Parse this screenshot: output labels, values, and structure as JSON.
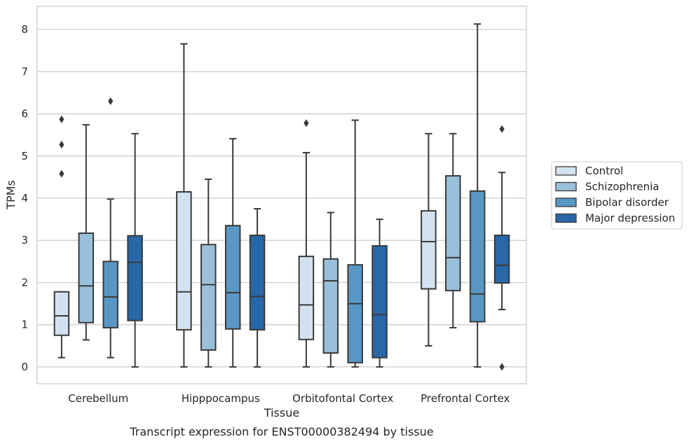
{
  "chart_data": {
    "type": "box",
    "title": "",
    "caption": "Transcript expression for ENST00000382494 by tissue",
    "xlabel": "Tissue",
    "ylabel": "TPMs",
    "ylim": [
      -0.4,
      8.55
    ],
    "yticks": [
      0,
      1,
      2,
      3,
      4,
      5,
      6,
      7,
      8
    ],
    "grid": "horizontal",
    "legend_position": "right",
    "categories": [
      "Cerebellum",
      "Hipppocampus",
      "Orbitofontal Cortex",
      "Prefrontal Cortex"
    ],
    "series": [
      {
        "name": "Control",
        "color": "#d3e2f0",
        "boxes": [
          {
            "whisker_low": 0.22,
            "q1": 0.75,
            "median": 1.21,
            "q3": 1.78,
            "whisker_high": 1.78,
            "outliers": [
              4.58,
              5.27,
              5.87
            ]
          },
          {
            "whisker_low": 0.0,
            "q1": 0.88,
            "median": 1.78,
            "q3": 4.15,
            "whisker_high": 7.66,
            "outliers": []
          },
          {
            "whisker_low": 0.0,
            "q1": 0.65,
            "median": 1.47,
            "q3": 2.62,
            "whisker_high": 5.08,
            "outliers": [
              5.78
            ]
          },
          {
            "whisker_low": 0.5,
            "q1": 1.85,
            "median": 2.97,
            "q3": 3.7,
            "whisker_high": 5.53,
            "outliers": []
          }
        ]
      },
      {
        "name": "Schizophrenia",
        "color": "#99c0db",
        "boxes": [
          {
            "whisker_low": 0.64,
            "q1": 1.05,
            "median": 1.92,
            "q3": 3.17,
            "whisker_high": 5.74,
            "outliers": []
          },
          {
            "whisker_low": 0.0,
            "q1": 0.4,
            "median": 1.95,
            "q3": 2.9,
            "whisker_high": 4.45,
            "outliers": []
          },
          {
            "whisker_low": 0.0,
            "q1": 0.33,
            "median": 2.04,
            "q3": 2.56,
            "whisker_high": 3.66,
            "outliers": []
          },
          {
            "whisker_low": 0.93,
            "q1": 1.81,
            "median": 2.59,
            "q3": 4.53,
            "whisker_high": 5.53,
            "outliers": []
          }
        ]
      },
      {
        "name": "Bipolar disorder",
        "color": "#5997c5",
        "boxes": [
          {
            "whisker_low": 0.22,
            "q1": 0.93,
            "median": 1.66,
            "q3": 2.5,
            "whisker_high": 3.98,
            "outliers": [
              6.3
            ]
          },
          {
            "whisker_low": 0.0,
            "q1": 0.9,
            "median": 1.76,
            "q3": 3.35,
            "whisker_high": 5.41,
            "outliers": []
          },
          {
            "whisker_low": 0.0,
            "q1": 0.1,
            "median": 1.5,
            "q3": 2.42,
            "whisker_high": 5.85,
            "outliers": []
          },
          {
            "whisker_low": 0.0,
            "q1": 1.07,
            "median": 1.73,
            "q3": 4.17,
            "whisker_high": 8.13,
            "outliers": []
          }
        ]
      },
      {
        "name": "Major depression",
        "color": "#2867a8",
        "boxes": [
          {
            "whisker_low": 0.0,
            "q1": 1.1,
            "median": 2.48,
            "q3": 3.11,
            "whisker_high": 5.53,
            "outliers": []
          },
          {
            "whisker_low": 0.0,
            "q1": 0.88,
            "median": 1.67,
            "q3": 3.12,
            "whisker_high": 3.75,
            "outliers": []
          },
          {
            "whisker_low": 0.0,
            "q1": 0.22,
            "median": 1.24,
            "q3": 2.87,
            "whisker_high": 3.5,
            "outliers": []
          },
          {
            "whisker_low": 1.36,
            "q1": 1.99,
            "median": 2.41,
            "q3": 3.12,
            "whisker_high": 4.61,
            "outliers": [
              0.0,
              5.64
            ]
          }
        ]
      }
    ]
  }
}
